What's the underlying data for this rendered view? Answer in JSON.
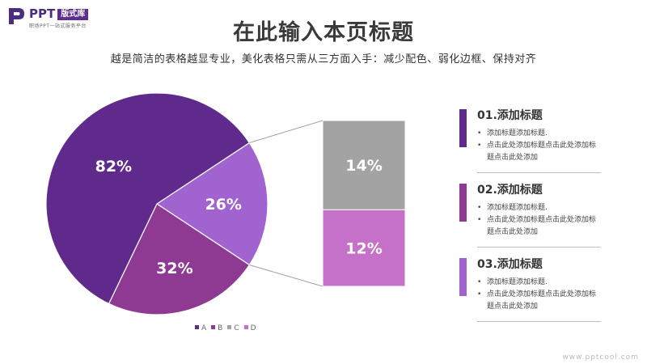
{
  "logo": {
    "name": "PPT",
    "tag": "版式库",
    "tagline": "职场PPT一站式服务平台"
  },
  "header": {
    "title": "在此输入本页标题",
    "subtitle": "越是简洁的表格越显专业，美化表格只需从三方面入手：减少配色、弱化边框、保持对齐"
  },
  "chart_data": {
    "type": "pie",
    "subtype": "bar-of-pie",
    "slices": [
      {
        "label": "82%",
        "value": 82,
        "color": "#5f2a8c"
      },
      {
        "label": "32%",
        "value": 32,
        "color": "#8e3a93"
      },
      {
        "label": "26%",
        "value": 26,
        "color": "#a063d0"
      }
    ],
    "stack": [
      {
        "label": "14%",
        "value": 14,
        "color": "#a3a3a3"
      },
      {
        "label": "12%",
        "value": 12,
        "color": "#c571c9"
      }
    ],
    "legend": [
      {
        "name": "A",
        "color": "#5f2a8c"
      },
      {
        "name": "B",
        "color": "#8e3a93"
      },
      {
        "name": "C",
        "color": "#a3a3a3"
      },
      {
        "name": "D",
        "color": "#c571c9"
      }
    ],
    "legend_position": "bottom"
  },
  "items": [
    {
      "title": "01.添加标题",
      "color": "#5f2a8c",
      "lines": [
        "添加标题添加标题.",
        "点击此处添加标题点击此处添加标题点击此处添加"
      ]
    },
    {
      "title": "02.添加标题",
      "color": "#8e3a93",
      "lines": [
        "添加标题添加标题.",
        "点击此处添加标题点击此处添加标题点击此处添加"
      ]
    },
    {
      "title": "03.添加标题",
      "color": "#a063d0",
      "lines": [
        "添加标题添加标题.",
        "点击此处添加标题点击此处添加标题点击此处添加"
      ]
    }
  ],
  "watermark": "www.pptcool.com"
}
